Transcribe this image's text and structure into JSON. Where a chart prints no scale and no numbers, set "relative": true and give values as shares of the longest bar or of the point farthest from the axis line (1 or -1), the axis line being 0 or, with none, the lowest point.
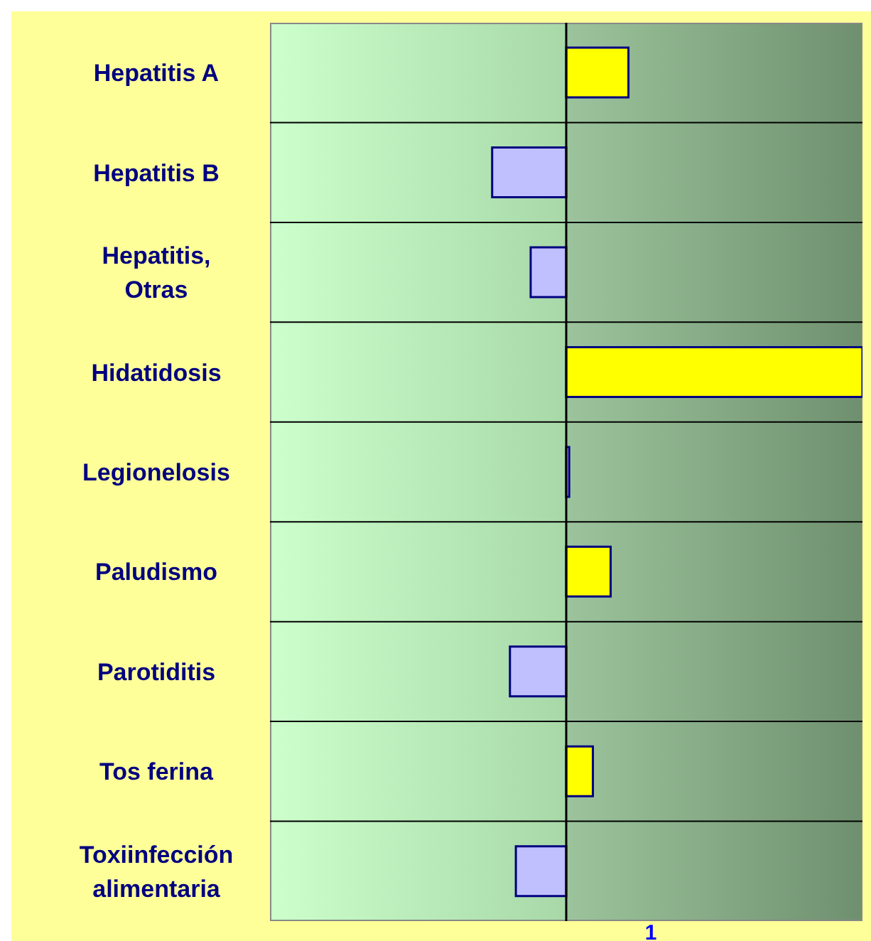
{
  "chart_data": {
    "type": "bar",
    "orientation": "horizontal",
    "relative": true,
    "grid": "y",
    "categories": [
      "Hepatitis A",
      "Hepatitis B",
      "Hepatitis, Otras",
      "Hidatidosis",
      "Legionelosis",
      "Paludismo",
      "Parotiditis",
      "Tos ferina",
      "Toxiinfección alimentaria"
    ],
    "values": [
      0.21,
      -0.25,
      -0.12,
      1,
      0.01,
      0.15,
      -0.19,
      0.09,
      -0.17
    ],
    "colors": [
      "#ffff00",
      "#c0c0ff",
      "#c0c0ff",
      "#ffff00",
      "#c0c0ff",
      "#ffff00",
      "#c0c0ff",
      "#ffff00",
      "#c0c0ff"
    ],
    "annotations": [
      "1"
    ]
  }
}
